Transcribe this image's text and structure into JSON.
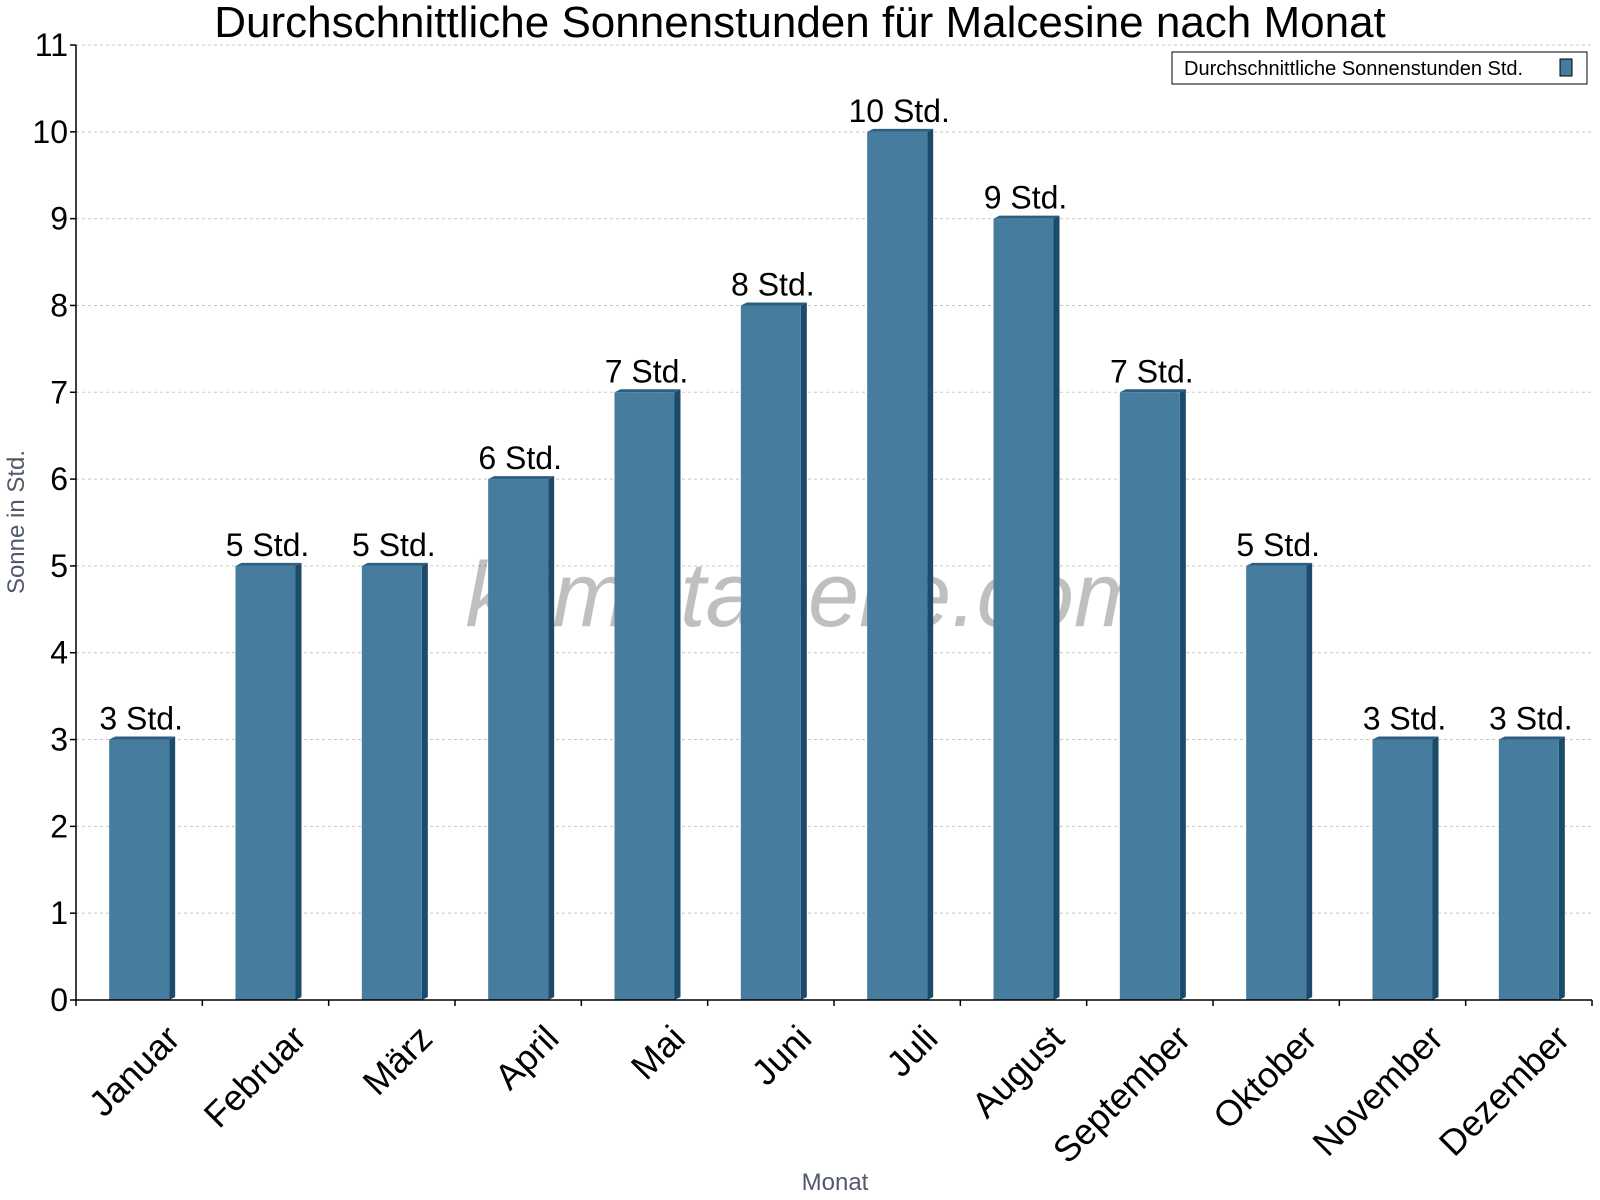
{
  "chart_data": {
    "type": "bar",
    "title": "Durchschnittliche Sonnenstunden für Malcesine nach Monat",
    "xlabel": "Monat",
    "ylabel": "Sonne in Std.",
    "categories": [
      "Januar",
      "Februar",
      "März",
      "April",
      "Mai",
      "Juni",
      "Juli",
      "August",
      "September",
      "Oktober",
      "November",
      "Dezember"
    ],
    "series": [
      {
        "name": "Durchschnittliche Sonnenstunden Std.",
        "values": [
          3,
          5,
          5,
          6,
          7,
          8,
          10,
          9,
          7,
          5,
          3,
          3
        ],
        "labels": [
          "3 Std.",
          "5 Std.",
          "5 Std.",
          "6 Std.",
          "7 Std.",
          "8 Std.",
          "10 Std.",
          "9 Std.",
          "7 Std.",
          "5 Std.",
          "3 Std.",
          "3 Std."
        ]
      }
    ],
    "ylim": [
      0,
      11
    ],
    "yticks": [
      "0",
      "1",
      "2",
      "3",
      "4",
      "5",
      "6",
      "7",
      "8",
      "9",
      "10",
      "11"
    ],
    "grid": true,
    "legend_position": "top-right",
    "watermark": "klimatabelle.com",
    "colors": {
      "bar": "#467c9e",
      "bar_side": "#1c4a6b",
      "bar_top": "#2e5f82",
      "grid": "#c8c8c8",
      "axis": "#000000",
      "axis_label": "#505a68"
    }
  }
}
